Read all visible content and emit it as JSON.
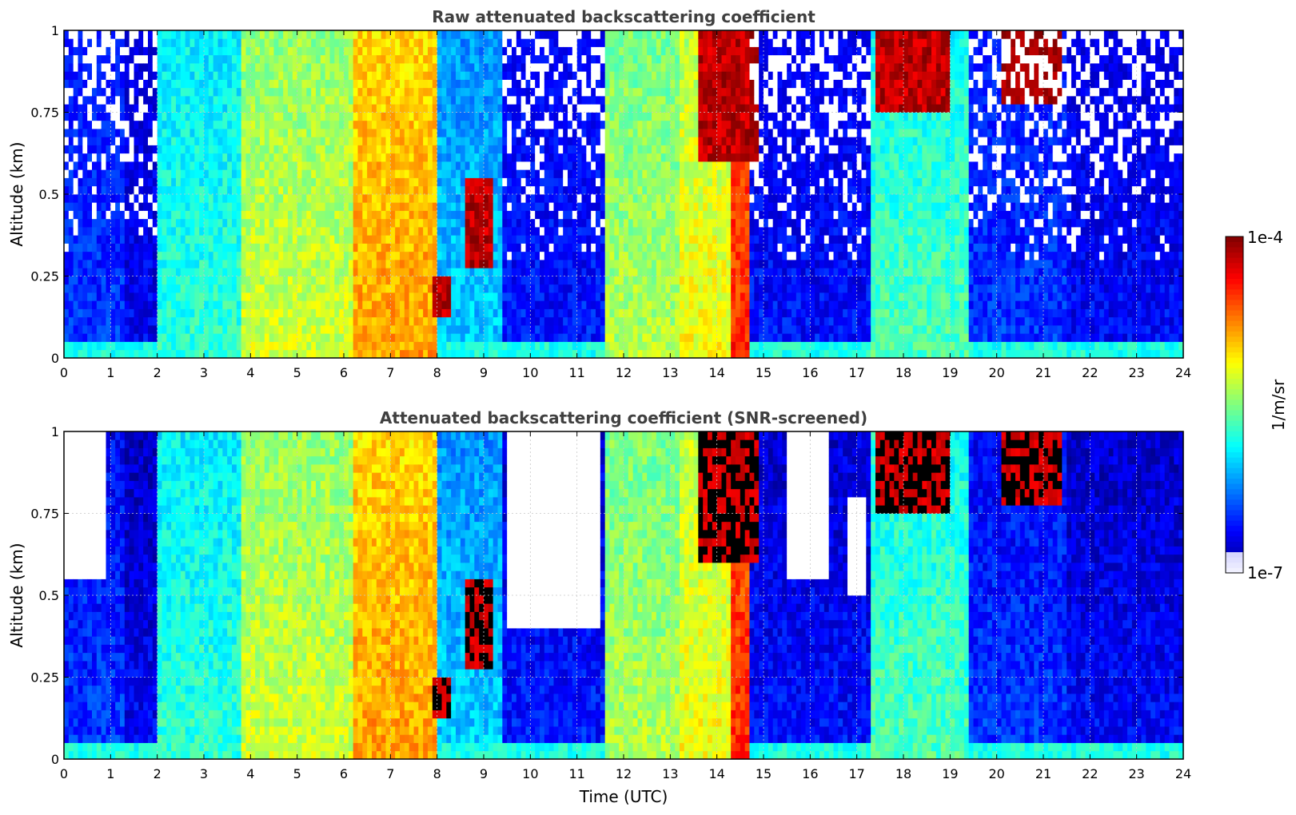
{
  "chart_data": [
    {
      "type": "heatmap",
      "title": "Raw attenuated backscattering coefficient",
      "xlabel": "",
      "ylabel": "Altitude (km)",
      "xlim": [
        0,
        24
      ],
      "ylim": [
        0,
        1
      ],
      "x_ticks": [
        "0",
        "1",
        "2",
        "3",
        "4",
        "5",
        "6",
        "7",
        "8",
        "9",
        "10",
        "11",
        "12",
        "13",
        "14",
        "15",
        "16",
        "17",
        "18",
        "19",
        "20",
        "21",
        "22",
        "23",
        "24"
      ],
      "y_ticks": [
        "0",
        "0.25",
        "0.5",
        "0.75",
        "1"
      ],
      "grid": true,
      "screened": false,
      "colormap": "jet",
      "time_segments": [
        {
          "t0": 0.0,
          "t1": 1.3,
          "level": 0.18
        },
        {
          "t0": 1.3,
          "t1": 2.0,
          "level": 0.12
        },
        {
          "t0": 2.0,
          "t1": 3.8,
          "level": 0.42
        },
        {
          "t0": 3.8,
          "t1": 6.2,
          "level": 0.58
        },
        {
          "t0": 6.2,
          "t1": 8.0,
          "level": 0.72
        },
        {
          "t0": 8.0,
          "t1": 9.4,
          "level": 0.33
        },
        {
          "t0": 9.4,
          "t1": 11.6,
          "level": 0.15
        },
        {
          "t0": 11.6,
          "t1": 13.2,
          "level": 0.55
        },
        {
          "t0": 13.2,
          "t1": 14.3,
          "level": 0.62
        },
        {
          "t0": 14.3,
          "t1": 14.7,
          "level": 0.84
        },
        {
          "t0": 14.7,
          "t1": 17.3,
          "level": 0.14
        },
        {
          "t0": 17.3,
          "t1": 19.4,
          "level": 0.45
        },
        {
          "t0": 19.4,
          "t1": 21.5,
          "level": 0.18
        },
        {
          "t0": 21.5,
          "t1": 24.0,
          "level": 0.13
        }
      ],
      "cloud_layers": [
        {
          "t0": 13.6,
          "t1": 14.9,
          "alt_bottom": 0.6,
          "alt_top": 1.0
        },
        {
          "t0": 17.4,
          "t1": 19.0,
          "alt_bottom": 0.75,
          "alt_top": 1.0
        },
        {
          "t0": 20.1,
          "t1": 21.4,
          "alt_bottom": 0.78,
          "alt_top": 1.0
        },
        {
          "t0": 8.6,
          "t1": 9.2,
          "alt_bottom": 0.28,
          "alt_top": 0.55
        },
        {
          "t0": 7.9,
          "t1": 8.3,
          "alt_bottom": 0.12,
          "alt_top": 0.25
        }
      ]
    },
    {
      "type": "heatmap",
      "title": "Attenuated backscattering coefficient (SNR-screened)",
      "xlabel": "Time (UTC)",
      "ylabel": "Altitude (km)",
      "xlim": [
        0,
        24
      ],
      "ylim": [
        0,
        1
      ],
      "x_ticks": [
        "0",
        "1",
        "2",
        "3",
        "4",
        "5",
        "6",
        "7",
        "8",
        "9",
        "10",
        "11",
        "12",
        "13",
        "14",
        "15",
        "16",
        "17",
        "18",
        "19",
        "20",
        "21",
        "22",
        "23",
        "24"
      ],
      "y_ticks": [
        "0",
        "0.25",
        "0.5",
        "0.75",
        "1"
      ],
      "grid": true,
      "screened": true,
      "colormap": "jet",
      "masked_regions": [
        {
          "t0": 0.0,
          "t1": 0.9,
          "alt_bottom": 0.55,
          "alt_top": 1.0
        },
        {
          "t0": 9.5,
          "t1": 11.5,
          "alt_bottom": 0.4,
          "alt_top": 1.0
        },
        {
          "t0": 15.5,
          "t1": 16.4,
          "alt_bottom": 0.55,
          "alt_top": 1.0
        },
        {
          "t0": 16.8,
          "t1": 17.2,
          "alt_bottom": 0.5,
          "alt_top": 0.8
        }
      ]
    }
  ],
  "colorbar": {
    "label": "1/m/sr",
    "max_label": "1e-4",
    "min_label": "1e-7",
    "bands": 64
  }
}
